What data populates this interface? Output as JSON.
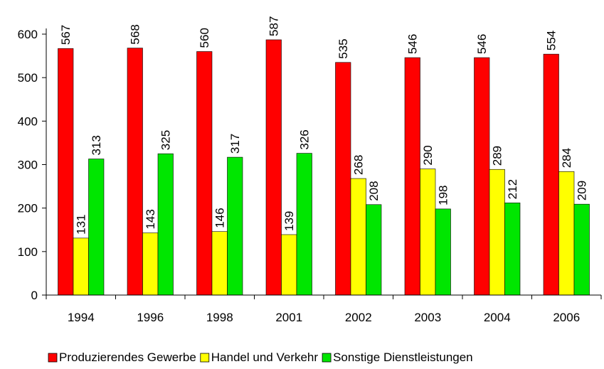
{
  "chart_data": {
    "type": "bar",
    "categories": [
      "1994",
      "1996",
      "1998",
      "2001",
      "2002",
      "2003",
      "2004",
      "2006"
    ],
    "series": [
      {
        "name": "Produzierendes Gewerbe",
        "color": "#ff0000",
        "values": [
          567,
          568,
          560,
          587,
          535,
          546,
          546,
          554
        ]
      },
      {
        "name": "Handel und Verkehr",
        "color": "#ffff00",
        "values": [
          131,
          143,
          146,
          139,
          268,
          290,
          289,
          284
        ]
      },
      {
        "name": "Sonstige Dienstleistungen",
        "color": "#00e600",
        "values": [
          313,
          325,
          317,
          326,
          208,
          198,
          212,
          209
        ]
      }
    ],
    "ylim": [
      0,
      600
    ],
    "yticks": [
      0,
      100,
      200,
      300,
      400,
      500,
      600
    ],
    "grid": false,
    "legend": "bottom"
  }
}
